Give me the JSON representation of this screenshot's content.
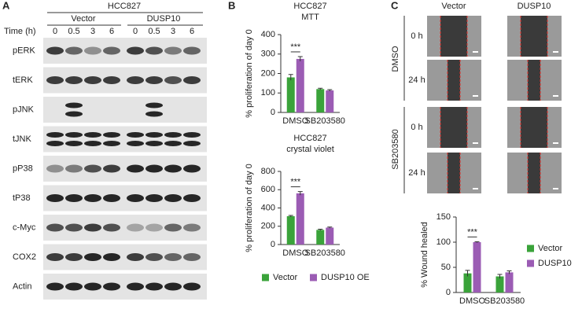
{
  "panel_labels": [
    "A",
    "B",
    "C"
  ],
  "blot": {
    "title": "HCC827",
    "groups": [
      "Vector",
      "DUSP10"
    ],
    "time_label": "Time (h)",
    "times": [
      "0",
      "0.5",
      "3",
      "6",
      "0",
      "0.5",
      "3",
      "6"
    ],
    "rows": [
      "pERK",
      "tERK",
      "pJNK",
      "tJNK",
      "pP38",
      "tP38",
      "c-Myc",
      "COX2",
      "Actin"
    ]
  },
  "wound": {
    "columns": [
      "Vector",
      "DUSP10"
    ],
    "groups": [
      "DMSO",
      "SB203580"
    ],
    "times": [
      "0 h",
      "24 h"
    ]
  },
  "chart_data": [
    {
      "type": "bar",
      "title": "HCC827",
      "subtitle": "MTT",
      "ylabel": "% proliferation of day 0",
      "categories": [
        "DMSO",
        "SB203580"
      ],
      "series": [
        {
          "color": "#3aa33a",
          "values": [
            180,
            120
          ],
          "errors": [
            15,
            4
          ]
        },
        {
          "color": "#9b5cb4",
          "values": [
            275,
            113
          ],
          "errors": [
            12,
            4
          ]
        }
      ],
      "ylim": [
        0,
        400
      ],
      "yticks": [
        0,
        100,
        200,
        300,
        400
      ],
      "annotation": "***"
    },
    {
      "type": "bar",
      "title": "HCC827",
      "subtitle": "crystal violet",
      "ylabel": "% proliferation of day 0",
      "categories": [
        "DMSO",
        "SB203580"
      ],
      "series": [
        {
          "name": "Vector",
          "color": "#3aa33a",
          "values": [
            310,
            160
          ],
          "errors": [
            8,
            8
          ]
        },
        {
          "name": "DUSP10 OE",
          "color": "#9b5cb4",
          "values": [
            560,
            185
          ],
          "errors": [
            20,
            6
          ]
        }
      ],
      "ylim": [
        0,
        800
      ],
      "yticks": [
        0,
        200,
        400,
        600,
        800
      ],
      "annotation": "***",
      "legend": "bottom"
    },
    {
      "type": "bar",
      "ylabel": "% Wound healed",
      "categories": [
        "DMSO",
        "SB203580"
      ],
      "series": [
        {
          "name": "Vector",
          "color": "#3aa33a",
          "values": [
            38,
            32
          ],
          "errors": [
            6,
            4
          ]
        },
        {
          "name": "DUSP10",
          "color": "#9b5cb4",
          "values": [
            100,
            40
          ],
          "errors": [
            1,
            3
          ]
        }
      ],
      "ylim": [
        0,
        150
      ],
      "yticks": [
        0,
        50,
        100,
        150
      ],
      "annotation": "***",
      "legend": "right"
    }
  ]
}
